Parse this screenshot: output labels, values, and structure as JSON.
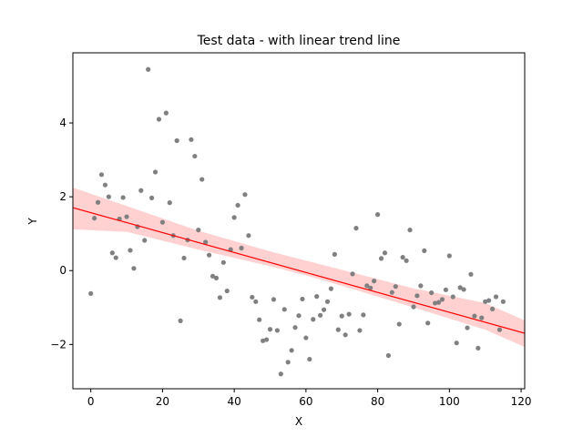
{
  "chart_data": {
    "type": "scatter",
    "title": "Test data - with linear trend line",
    "xlabel": "X",
    "ylabel": "Y",
    "xlim": [
      -5,
      121
    ],
    "ylim": [
      -3.2,
      5.9
    ],
    "x_ticks": [
      0,
      20,
      40,
      60,
      80,
      100,
      120
    ],
    "y_ticks": [
      -2,
      0,
      2,
      4
    ],
    "grid": false,
    "colors": {
      "points": "#808080",
      "trend_line": "#ff0000",
      "confidence_band": "#ff9999"
    },
    "trend_line": {
      "slope": -0.027,
      "intercept": 1.57
    },
    "confidence_band": {
      "x": [
        -5,
        10,
        30,
        50,
        60,
        70,
        90,
        110,
        121
      ],
      "lower": [
        1.12,
        1.05,
        0.57,
        0.12,
        -0.13,
        -0.41,
        -1.0,
        -1.6,
        -2.07
      ],
      "upper": [
        2.25,
        1.75,
        1.08,
        0.52,
        0.27,
        0.02,
        -0.48,
        -0.88,
        -1.35
      ]
    },
    "series": [
      {
        "points": [
          [
            0,
            -0.62
          ],
          [
            1,
            1.42
          ],
          [
            2,
            1.85
          ],
          [
            3,
            2.6
          ],
          [
            4,
            2.32
          ],
          [
            5,
            2.0
          ],
          [
            6,
            0.48
          ],
          [
            7,
            0.35
          ],
          [
            8,
            1.4
          ],
          [
            9,
            1.98
          ],
          [
            10,
            1.46
          ],
          [
            11,
            0.55
          ],
          [
            12,
            0.06
          ],
          [
            13,
            1.19
          ],
          [
            14,
            2.17
          ],
          [
            15,
            0.82
          ],
          [
            16,
            5.45
          ],
          [
            17,
            1.97
          ],
          [
            18,
            2.67
          ],
          [
            19,
            4.1
          ],
          [
            20,
            1.31
          ],
          [
            21,
            4.27
          ],
          [
            22,
            1.84
          ],
          [
            23,
            0.95
          ],
          [
            24,
            3.52
          ],
          [
            25,
            -1.36
          ],
          [
            26,
            0.34
          ],
          [
            27,
            0.83
          ],
          [
            28,
            3.55
          ],
          [
            29,
            3.1
          ],
          [
            30,
            1.1
          ],
          [
            31,
            2.47
          ],
          [
            32,
            0.77
          ],
          [
            33,
            0.42
          ],
          [
            34,
            -0.15
          ],
          [
            35,
            -0.2
          ],
          [
            36,
            -0.73
          ],
          [
            37,
            0.22
          ],
          [
            38,
            -0.55
          ],
          [
            39,
            0.57
          ],
          [
            40,
            1.44
          ],
          [
            41,
            1.77
          ],
          [
            42,
            0.61
          ],
          [
            43,
            2.06
          ],
          [
            44,
            0.95
          ],
          [
            45,
            -0.72
          ],
          [
            46,
            -0.84
          ],
          [
            47,
            -1.33
          ],
          [
            48,
            -1.9
          ],
          [
            49,
            -1.87
          ],
          [
            50,
            -1.59
          ],
          [
            51,
            -0.78
          ],
          [
            52,
            -1.62
          ],
          [
            53,
            -2.8
          ],
          [
            54,
            -1.05
          ],
          [
            55,
            -2.48
          ],
          [
            56,
            -2.16
          ],
          [
            57,
            -1.54
          ],
          [
            58,
            -1.22
          ],
          [
            59,
            -0.77
          ],
          [
            60,
            -1.82
          ],
          [
            61,
            -2.4
          ],
          [
            62,
            -1.32
          ],
          [
            63,
            -0.7
          ],
          [
            64,
            -1.21
          ],
          [
            65,
            -1.06
          ],
          [
            66,
            -0.84
          ],
          [
            67,
            -0.49
          ],
          [
            68,
            0.44
          ],
          [
            69,
            -1.6
          ],
          [
            70,
            -1.23
          ],
          [
            71,
            -1.74
          ],
          [
            72,
            -1.18
          ],
          [
            73,
            -0.09
          ],
          [
            74,
            1.15
          ],
          [
            75,
            -1.62
          ],
          [
            76,
            -1.2
          ],
          [
            77,
            -0.41
          ],
          [
            78,
            -0.47
          ],
          [
            79,
            -0.28
          ],
          [
            80,
            1.52
          ],
          [
            81,
            0.33
          ],
          [
            82,
            0.48
          ],
          [
            83,
            -2.3
          ],
          [
            84,
            -0.59
          ],
          [
            85,
            -0.43
          ],
          [
            86,
            -1.45
          ],
          [
            87,
            0.36
          ],
          [
            88,
            0.27
          ],
          [
            89,
            1.1
          ],
          [
            90,
            -0.98
          ],
          [
            91,
            -0.68
          ],
          [
            92,
            -0.41
          ],
          [
            93,
            0.54
          ],
          [
            94,
            -1.42
          ],
          [
            95,
            -0.6
          ],
          [
            96,
            -0.88
          ],
          [
            97,
            -0.86
          ],
          [
            98,
            -0.78
          ],
          [
            99,
            -0.52
          ],
          [
            100,
            0.4
          ],
          [
            101,
            -0.71
          ],
          [
            102,
            -1.96
          ],
          [
            103,
            -0.46
          ],
          [
            104,
            -0.51
          ],
          [
            105,
            -1.55
          ],
          [
            106,
            -0.1
          ],
          [
            107,
            -1.23
          ],
          [
            108,
            -2.1
          ],
          [
            109,
            -1.28
          ],
          [
            110,
            -0.84
          ],
          [
            111,
            -0.81
          ],
          [
            112,
            -1.04
          ],
          [
            113,
            -0.71
          ],
          [
            114,
            -1.6
          ],
          [
            115,
            -0.84
          ]
        ]
      }
    ]
  }
}
